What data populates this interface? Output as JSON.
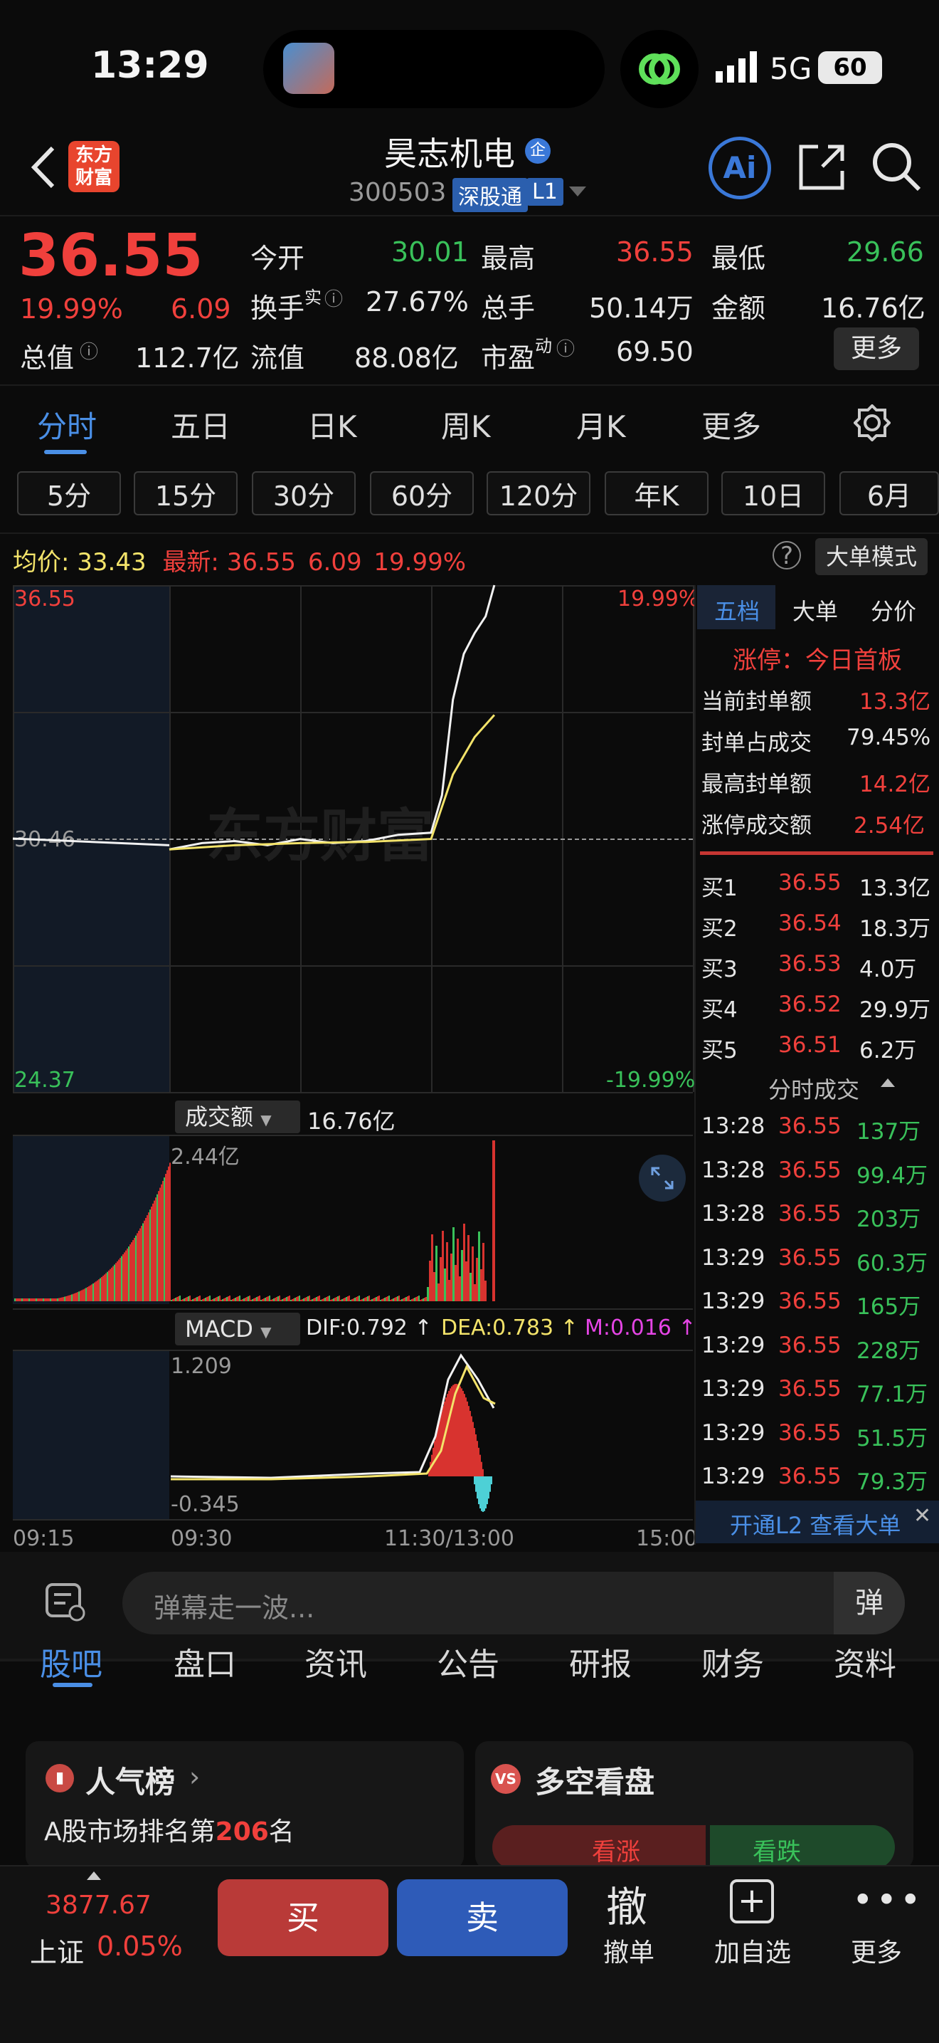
{
  "status": {
    "time": "13:29",
    "network": "5G",
    "battery": "60"
  },
  "header": {
    "title": "昊志机电",
    "badge_icon": "企",
    "code": "300503",
    "tag": "深股通",
    "level": "L1",
    "logo_text": [
      "东方",
      "财富"
    ]
  },
  "quote": {
    "price": "36.55",
    "pct": "19.99%",
    "chg": "6.09",
    "total_value_label": "总值",
    "total_value": "112.7亿",
    "open_label": "今开",
    "open": "30.01",
    "high_label": "最高",
    "high": "36.55",
    "low_label": "最低",
    "low": "29.66",
    "turnover_label": "换手",
    "turnover_sup": "实",
    "turnover": "27.67%",
    "volume_label": "总手",
    "volume": "50.14万",
    "amount_label": "金额",
    "amount": "16.76亿",
    "float_label": "流值",
    "float_value": "88.08亿",
    "pe_label": "市盈",
    "pe_sup": "动",
    "pe": "69.50",
    "more": "更多"
  },
  "tabs": [
    "分时",
    "五日",
    "日K",
    "周K",
    "月K",
    "更多"
  ],
  "chips": [
    "5分",
    "15分",
    "30分",
    "60分",
    "120分",
    "年K",
    "10日",
    "6月"
  ],
  "avgline": {
    "avg_label": "均价:",
    "avg": "33.43",
    "latest_label": "最新:",
    "latest": "36.55",
    "chg": "6.09",
    "pct": "19.99%",
    "big_mode": "大单模式"
  },
  "chart": {
    "top_price": "36.55",
    "mid_price": "30.46",
    "bottom_price": "24.37",
    "top_pct": "19.99%",
    "bottom_pct": "-19.99%",
    "vol_label": "成交额",
    "vol_total": "16.76亿",
    "vol_max": "2.44亿",
    "macd_label": "MACD",
    "dif": "DIF:0.792 ↑",
    "dea": "DEA:0.783 ↑",
    "m": "M:0.016 ↑",
    "macd_max": "1.209",
    "macd_min": "-0.345",
    "times": [
      "09:15",
      "09:30",
      "11:30/13:00",
      "15:00"
    ]
  },
  "chart_data": {
    "type": "line",
    "series": [
      {
        "name": "price",
        "x": [
          "09:30",
          "09:45",
          "10:00",
          "10:15",
          "10:30",
          "10:45",
          "11:00",
          "11:15",
          "11:30",
          "13:05",
          "13:10",
          "13:15",
          "13:20",
          "13:25",
          "13:29"
        ],
        "values": [
          30.2,
          30.35,
          30.4,
          30.3,
          30.45,
          30.35,
          30.4,
          30.55,
          30.6,
          31.5,
          33.8,
          34.9,
          35.4,
          35.8,
          36.55
        ]
      },
      {
        "name": "avg",
        "x": [
          "09:30",
          "10:00",
          "10:30",
          "11:00",
          "11:30",
          "13:10",
          "13:20",
          "13:29"
        ],
        "values": [
          30.2,
          30.3,
          30.35,
          30.38,
          30.45,
          32.0,
          32.9,
          33.43
        ]
      }
    ],
    "ylim": [
      24.37,
      36.55
    ]
  },
  "right": {
    "tabs": [
      "五档",
      "大单",
      "分价"
    ],
    "limit_up": "涨停：今日首板",
    "rows": [
      {
        "label": "当前封单额",
        "value": "13.3亿"
      },
      {
        "label": "封单占成交",
        "value": "79.45%"
      },
      {
        "label": "最高封单额",
        "value": "14.2亿"
      },
      {
        "label": "涨停成交额",
        "value": "2.54亿"
      }
    ],
    "bids": [
      {
        "label": "买1",
        "price": "36.55",
        "vol": "13.3亿"
      },
      {
        "label": "买2",
        "price": "36.54",
        "vol": "18.3万"
      },
      {
        "label": "买3",
        "price": "36.53",
        "vol": "4.0万"
      },
      {
        "label": "买4",
        "price": "36.52",
        "vol": "29.9万"
      },
      {
        "label": "买5",
        "price": "36.51",
        "vol": "6.2万"
      }
    ],
    "ticks_title": "分时成交",
    "ticks": [
      {
        "t": "13:28",
        "p": "36.55",
        "v": "137万"
      },
      {
        "t": "13:28",
        "p": "36.55",
        "v": "99.4万"
      },
      {
        "t": "13:28",
        "p": "36.55",
        "v": "203万"
      },
      {
        "t": "13:29",
        "p": "36.55",
        "v": "60.3万"
      },
      {
        "t": "13:29",
        "p": "36.55",
        "v": "165万"
      },
      {
        "t": "13:29",
        "p": "36.55",
        "v": "228万"
      },
      {
        "t": "13:29",
        "p": "36.55",
        "v": "77.1万"
      },
      {
        "t": "13:29",
        "p": "36.55",
        "v": "51.5万"
      },
      {
        "t": "13:29",
        "p": "36.55",
        "v": "79.3万"
      }
    ],
    "l2_banner": "开通L2 查看大单"
  },
  "comment": {
    "placeholder": "弹幕走一波..."
  },
  "bottom_tabs": [
    "股吧",
    "盘口",
    "资讯",
    "公告",
    "研报",
    "财务",
    "资料"
  ],
  "cards": {
    "popular_title": "人气榜",
    "rank_prefix": "A股市场排名第",
    "rank": "206",
    "rank_suffix": "名",
    "bull_bear_title": "多空看盘",
    "bull": "看涨",
    "bear": "看跌"
  },
  "footer": {
    "index_value": "3877.67",
    "index_name": "上证",
    "index_pct": "0.05%",
    "buy": "买",
    "sell": "卖",
    "cancel_big": "撤",
    "cancel": "撤单",
    "add": "加自选",
    "more": "更多"
  }
}
